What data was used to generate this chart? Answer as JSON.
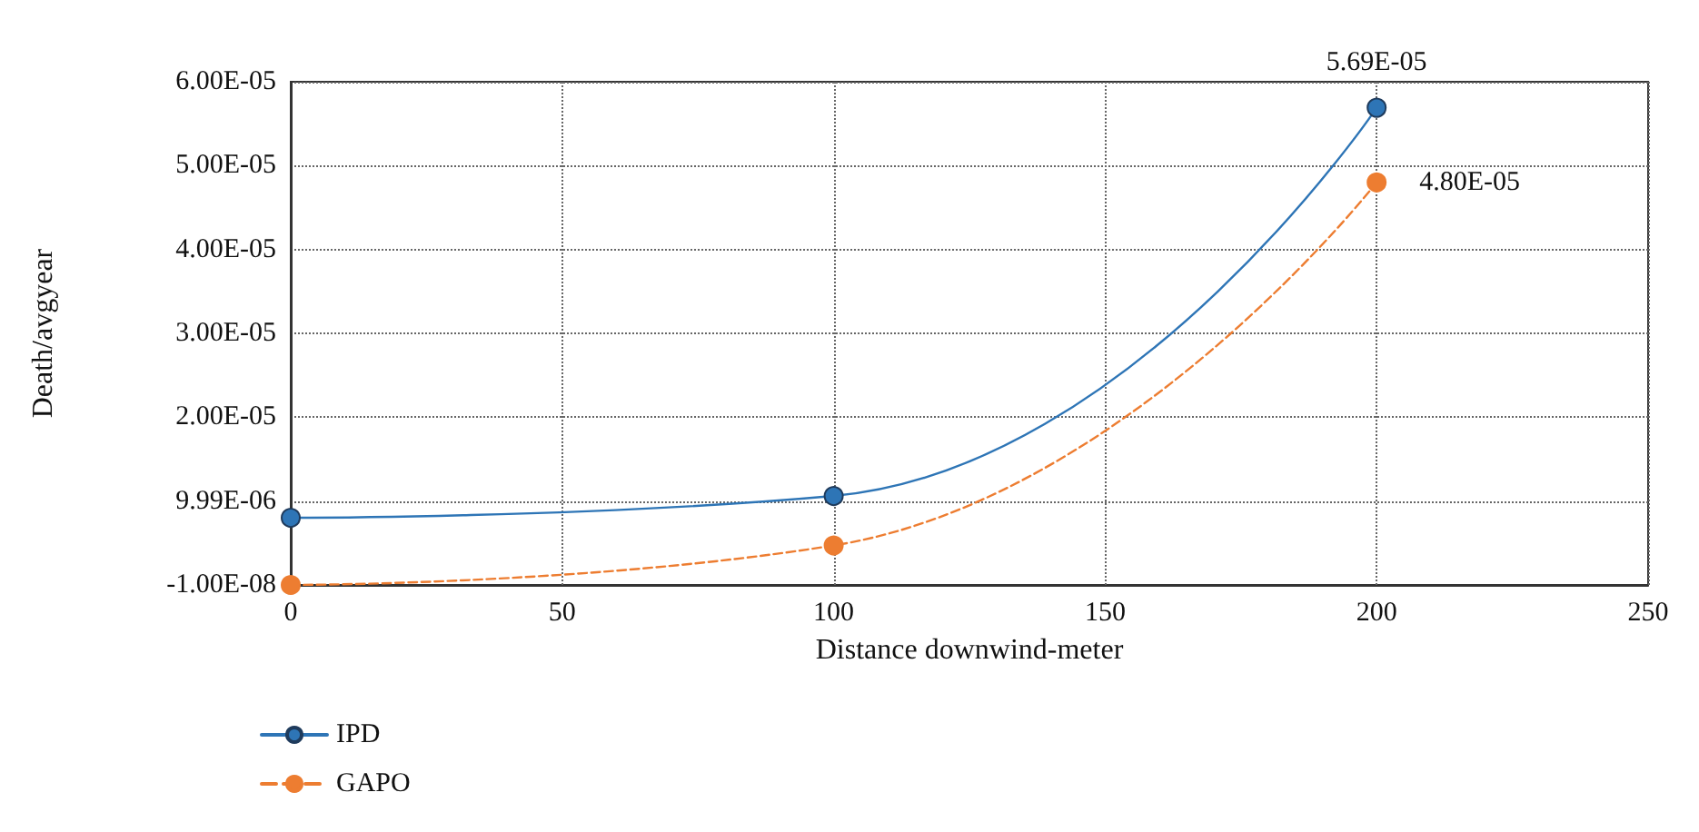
{
  "chart_data": {
    "type": "line",
    "xlabel": "Distance downwind-meter",
    "ylabel": "Death/avgyear",
    "x": [
      0,
      100,
      200
    ],
    "series": [
      {
        "name": "IPD",
        "color": "#2e75b6",
        "values": [
          8e-06,
          1.06e-05,
          5.69e-05
        ],
        "value_labels": [
          null,
          null,
          "5.69E-05"
        ],
        "line_style": "solid"
      },
      {
        "name": "GAPO",
        "color": "#ed7d31",
        "values": [
          -1e-08,
          4.7e-06,
          4.8e-05
        ],
        "value_labels": [
          null,
          null,
          "4.80E-05"
        ],
        "line_style": "dashed"
      }
    ],
    "xlim": [
      0,
      250
    ],
    "xticks": [
      0,
      50,
      100,
      150,
      200,
      250
    ],
    "ylim": [
      -1e-08,
      6e-05
    ],
    "yticks": [
      {
        "value": -1e-08,
        "label": "-1.00E-08"
      },
      {
        "value": 9.99e-06,
        "label": "9.99E-06"
      },
      {
        "value": 2e-05,
        "label": "2.00E-05"
      },
      {
        "value": 3e-05,
        "label": "3.00E-05"
      },
      {
        "value": 4e-05,
        "label": "4.00E-05"
      },
      {
        "value": 5e-05,
        "label": "5.00E-05"
      },
      {
        "value": 6e-05,
        "label": "6.00E-05"
      }
    ],
    "grid": true,
    "legend": "bottom left",
    "marker": "circle"
  }
}
